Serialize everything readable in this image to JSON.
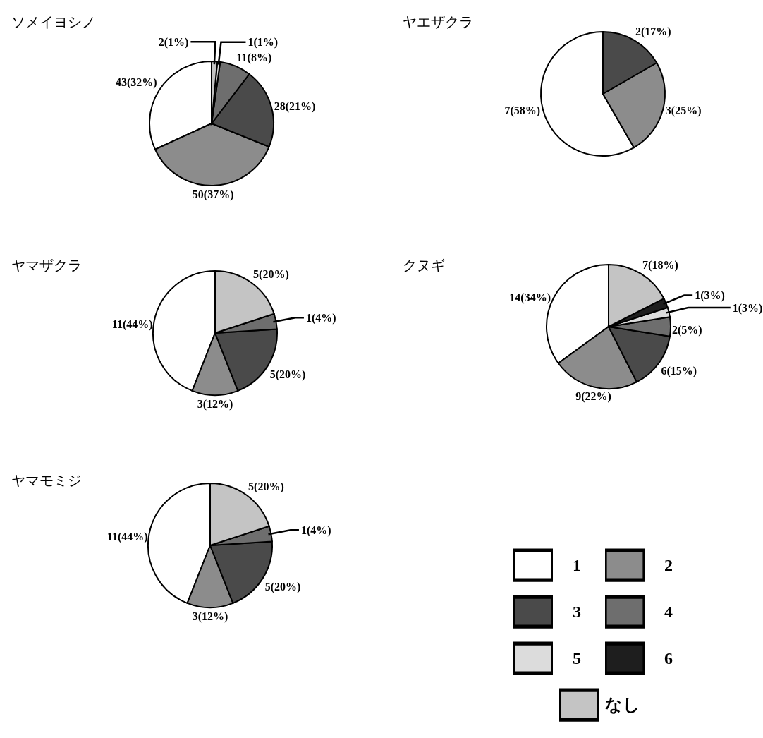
{
  "chart_data": [
    {
      "type": "pie",
      "title": "ソメイヨシノ",
      "categories": [
        null,
        null,
        null,
        null,
        null,
        null
      ],
      "values": [
        43,
        50,
        28,
        11,
        1,
        2
      ],
      "colors": [
        "#ffffff",
        "#8c8c8c",
        "#4a4a4a",
        "#6e6e6e",
        "#dcdcdc",
        "#c4c4c4"
      ],
      "value_labels": [
        "43(32%)",
        "50(37%)",
        "28(21%)",
        "11(8%)",
        "1(1%)",
        "2(1%)"
      ]
    },
    {
      "type": "pie",
      "title": "ヤエザクラ",
      "categories": [
        null,
        null,
        null
      ],
      "values": [
        7,
        3,
        2
      ],
      "colors": [
        "#ffffff",
        "#8c8c8c",
        "#4a4a4a"
      ],
      "value_labels": [
        "7(58%)",
        "3(25%)",
        "2(17%)"
      ]
    },
    {
      "type": "pie",
      "title": "ヤマザクラ",
      "categories": [
        null,
        null,
        null,
        null,
        null
      ],
      "values": [
        11,
        3,
        5,
        1,
        5
      ],
      "colors": [
        "#ffffff",
        "#8c8c8c",
        "#4a4a4a",
        "#6e6e6e",
        "#c4c4c4"
      ],
      "value_labels": [
        "11(44%)",
        "3(12%)",
        "5(20%)",
        "1(4%)",
        "5(20%)"
      ]
    },
    {
      "type": "pie",
      "title": "クヌギ",
      "categories": [
        "1",
        "2",
        "3",
        "4",
        "5",
        "6",
        "なし"
      ],
      "values": [
        14,
        9,
        6,
        2,
        1,
        1,
        7
      ],
      "colors": [
        "#ffffff",
        "#8c8c8c",
        "#4a4a4a",
        "#6e6e6e",
        "#dcdcdc",
        "#1e1e1e",
        "#c4c4c4"
      ],
      "value_labels": [
        "14(34%)",
        "9(22%)",
        "6(15%)",
        "2(5%)",
        "1(3%)",
        "1(3%)",
        "7(18%)"
      ],
      "legend": "bottom"
    },
    {
      "type": "pie",
      "title": "ヤマモミジ",
      "categories": [
        null,
        null,
        null,
        null,
        null
      ],
      "values": [
        11,
        3,
        5,
        1,
        5
      ],
      "colors": [
        "#ffffff",
        "#8c8c8c",
        "#4a4a4a",
        "#6e6e6e",
        "#c4c4c4"
      ],
      "value_labels": [
        "11(44%)",
        "3(12%)",
        "5(20%)",
        "1(4%)",
        "5(20%)"
      ]
    }
  ]
}
